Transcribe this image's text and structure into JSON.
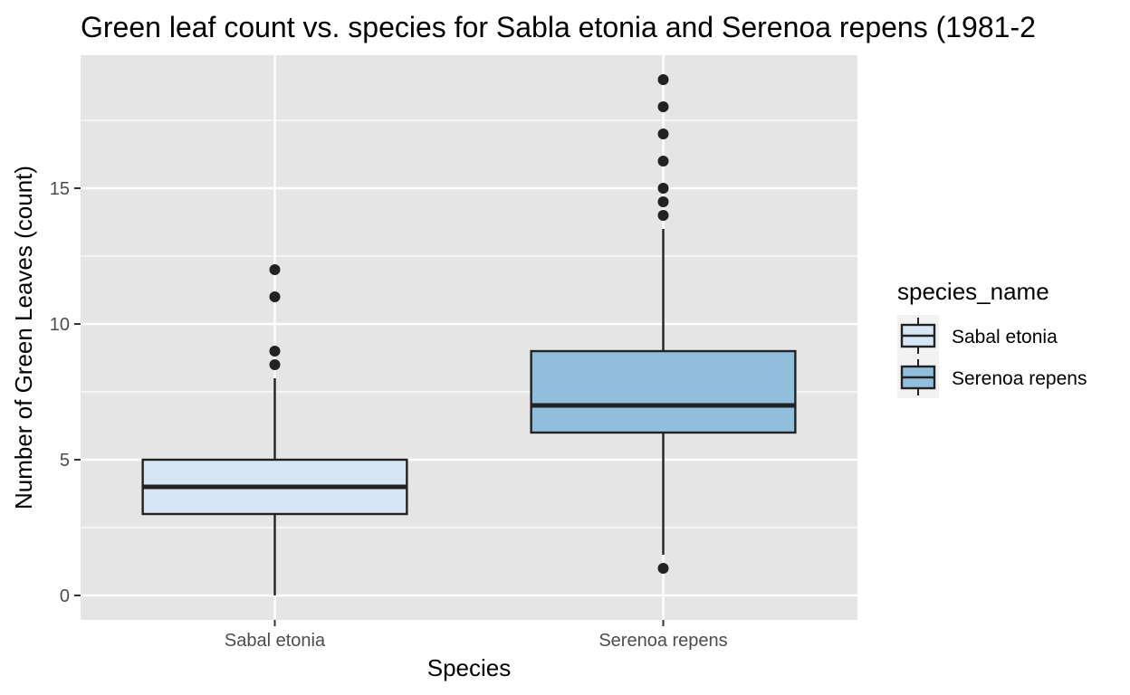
{
  "chart_data": {
    "type": "boxplot",
    "title": "Green leaf count vs. species for Sabla etonia and Serenoa repens (1981-2",
    "xlabel": "Species",
    "ylabel": "Number of Green Leaves (count)",
    "categories": [
      "Sabal etonia",
      "Serenoa repens"
    ],
    "ylim": [
      -0.9,
      19.9
    ],
    "yticks": [
      0,
      5,
      10,
      15
    ],
    "grid": true,
    "legend": {
      "title": "species_name",
      "placement": "right",
      "entries": [
        "Sabal etonia",
        "Serenoa repens"
      ]
    },
    "series": [
      {
        "category": "Sabal etonia",
        "fill": "#d6e6f4",
        "whisker_low": 0,
        "q1": 3,
        "median": 4,
        "q3": 5,
        "whisker_high": 8,
        "outliers": [
          8.5,
          9,
          11,
          12
        ]
      },
      {
        "category": "Serenoa repens",
        "fill": "#91bfdb",
        "whisker_low": 1.5,
        "q1": 6,
        "median": 7,
        "q3": 9,
        "whisker_high": 13.5,
        "outliers": [
          1,
          14,
          14.5,
          15,
          16,
          17,
          18,
          19
        ]
      }
    ],
    "colors": {
      "panel_background": "#e5e5e5",
      "grid": "#ffffff",
      "box_stroke": "#222222",
      "outlier": "#222222"
    }
  }
}
